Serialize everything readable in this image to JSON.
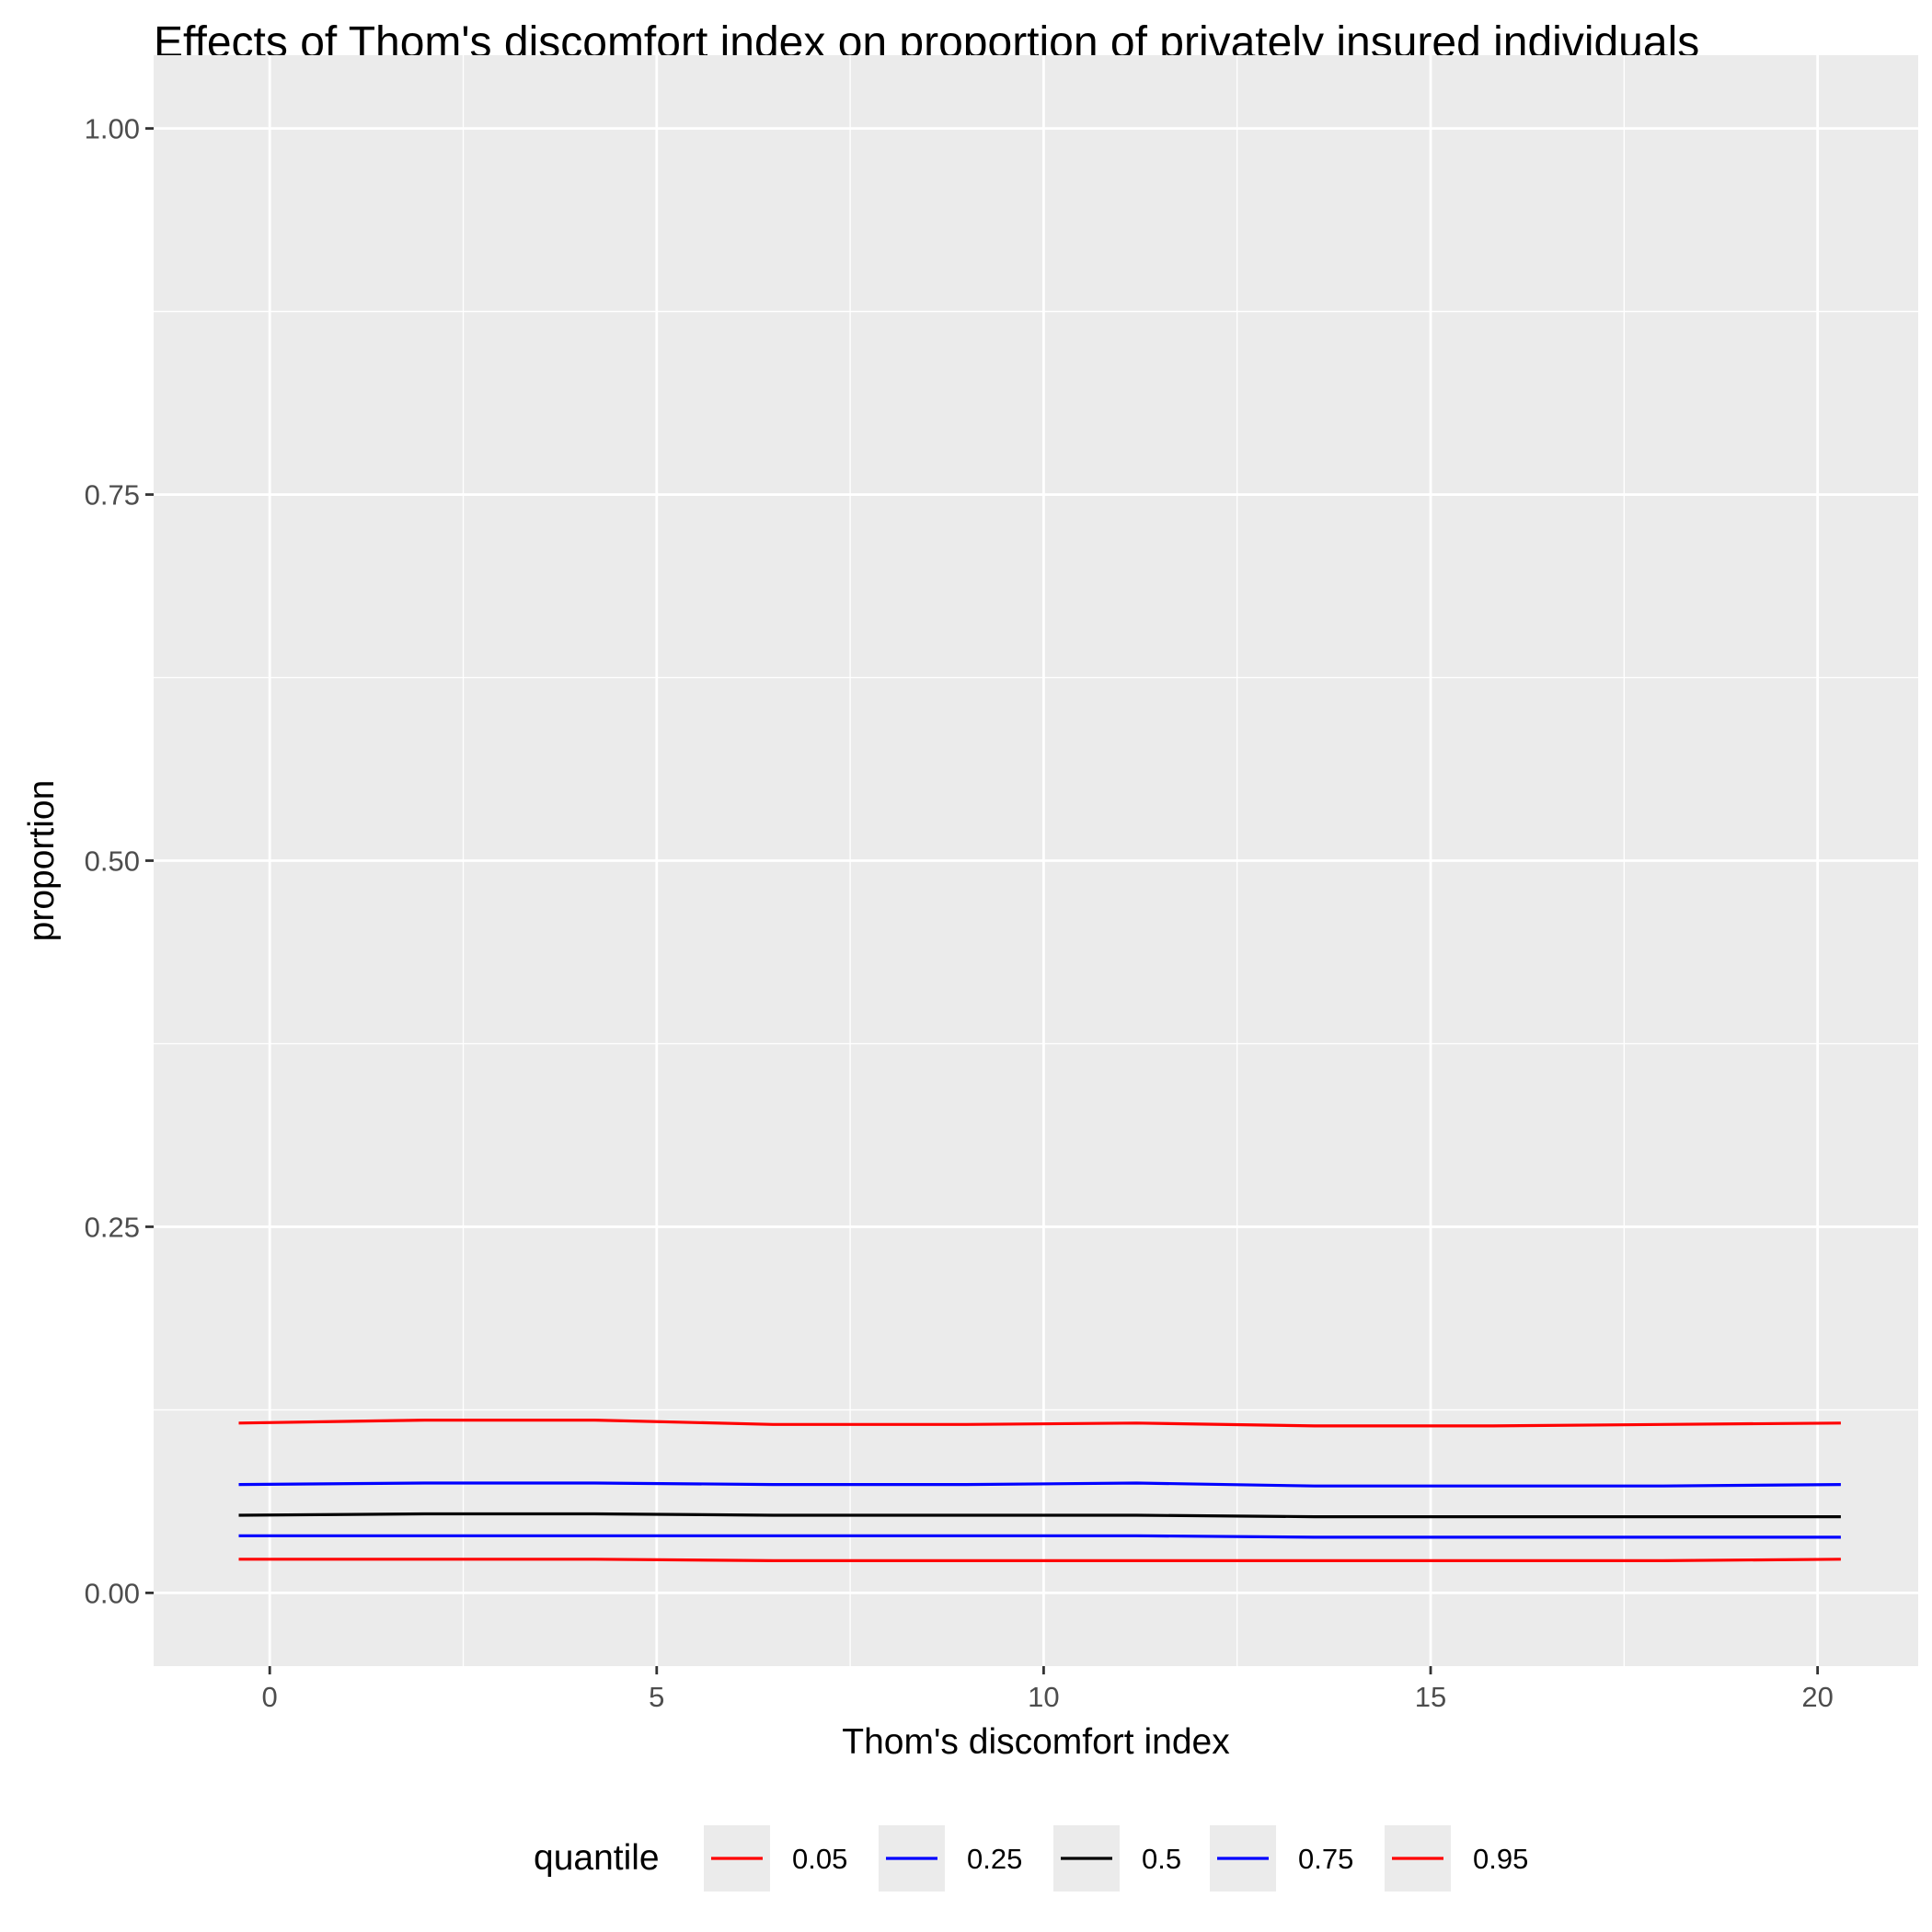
{
  "chart_data": {
    "type": "line",
    "title": "Effects of Thom's discomfort index on proportion of privately insured individuals",
    "xlabel": "Thom's discomfort index",
    "ylabel": "proportion",
    "xlim": [
      -1.5,
      21.3
    ],
    "ylim": [
      -0.05,
      1.05
    ],
    "xticks": [
      0,
      5,
      10,
      15,
      20
    ],
    "xtick_labels": [
      "0",
      "5",
      "10",
      "15",
      "20"
    ],
    "yticks": [
      0,
      0.25,
      0.5,
      0.75,
      1
    ],
    "ytick_labels": [
      "0.00",
      "0.25",
      "0.50",
      "0.75",
      "1.00"
    ],
    "grid": true,
    "legend": {
      "title": "quantile",
      "position": "bottom"
    },
    "x": [
      -0.4,
      2.0,
      4.2,
      6.5,
      9.0,
      11.2,
      13.5,
      15.8,
      18.0,
      20.3
    ],
    "series": [
      {
        "name": "0.05",
        "color": "#ff0000",
        "values": [
          0.023,
          0.023,
          0.023,
          0.022,
          0.022,
          0.022,
          0.022,
          0.022,
          0.022,
          0.023
        ]
      },
      {
        "name": "0.25",
        "color": "#0000ff",
        "values": [
          0.039,
          0.039,
          0.039,
          0.039,
          0.039,
          0.039,
          0.038,
          0.038,
          0.038,
          0.038
        ]
      },
      {
        "name": "0.5",
        "color": "#000000",
        "values": [
          0.053,
          0.054,
          0.054,
          0.053,
          0.053,
          0.053,
          0.052,
          0.052,
          0.052,
          0.052
        ]
      },
      {
        "name": "0.75",
        "color": "#0000ff",
        "values": [
          0.074,
          0.075,
          0.075,
          0.074,
          0.074,
          0.075,
          0.073,
          0.073,
          0.073,
          0.074
        ]
      },
      {
        "name": "0.95",
        "color": "#ff0000",
        "values": [
          0.116,
          0.118,
          0.118,
          0.115,
          0.115,
          0.116,
          0.114,
          0.114,
          0.115,
          0.116
        ]
      }
    ]
  }
}
